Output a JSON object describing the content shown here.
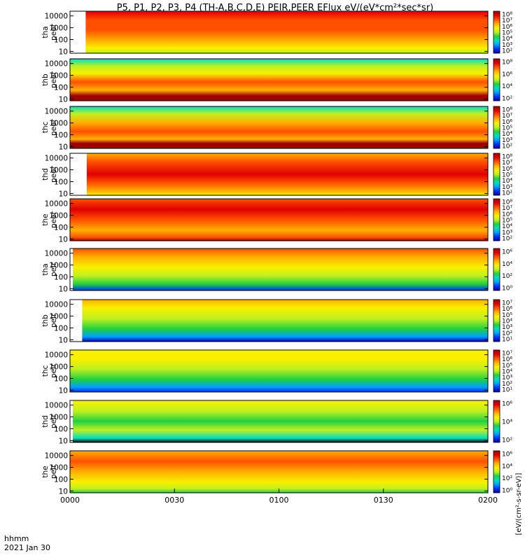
{
  "title": "P5, P1, P2, P3, P4 (TH-A,B,C,D,E) PEIR,PEER EFlux eV/(eV*cm²*sec*sr)",
  "colors": {
    "spectrum": [
      "#1000a0",
      "#0030ff",
      "#00a0ff",
      "#00e0c0",
      "#20d040",
      "#c0f020",
      "#f8f000",
      "#ffb000",
      "#ff5000",
      "#e00000",
      "#a00000"
    ]
  },
  "chart_data": {
    "type": "heatmap",
    "xaxis": {
      "label_line1": "hhmm",
      "label_line2": "2021 Jan 30",
      "ticks": [
        "0000",
        "0030",
        "0100",
        "0130",
        "0200"
      ],
      "range": [
        "00:00",
        "02:00"
      ]
    },
    "yaxis": {
      "scale": "log",
      "ticks": [
        "10",
        "100",
        "1000",
        "10000"
      ],
      "range_eV": [
        7,
        25000
      ]
    },
    "colorbar_label": "[eV/(cm²-s-sr-eV)]",
    "panels": [
      {
        "id": "tha-peer",
        "probe": "tha",
        "product": "peer",
        "cb_ticks": [
          "10²",
          "10³",
          "10⁴",
          "10⁵",
          "10⁶",
          "10⁷",
          "10⁸"
        ],
        "data_start_min": 4.5,
        "bands": [
          [
            1,
            "#e00000"
          ],
          [
            0.78,
            "#ff5000"
          ],
          [
            0.55,
            "#ff5000"
          ],
          [
            0.3,
            "#ffb000"
          ],
          [
            0.12,
            "#f8f000"
          ],
          [
            0,
            "#c0f020"
          ]
        ]
      },
      {
        "id": "thb-peer",
        "probe": "thb",
        "product": "peer",
        "cb_ticks": [
          "10²",
          "10⁴",
          "10⁶",
          "10⁸"
        ],
        "data_start_min": 0,
        "bands": [
          [
            1,
            "#00e0c0"
          ],
          [
            0.82,
            "#c0f020"
          ],
          [
            0.65,
            "#f8f000"
          ],
          [
            0.45,
            "#ff5000"
          ],
          [
            0.25,
            "#ffb000"
          ],
          [
            0.12,
            "#a00000"
          ],
          [
            0,
            "#a00000"
          ]
        ]
      },
      {
        "id": "thc-peer",
        "probe": "thc",
        "product": "peer",
        "cb_ticks": [
          "10²",
          "10³",
          "10⁴",
          "10⁵",
          "10⁶",
          "10⁷",
          "10⁸"
        ],
        "data_start_min": 0,
        "bands": [
          [
            1,
            "#00e0c0"
          ],
          [
            0.82,
            "#c0f020"
          ],
          [
            0.62,
            "#ffb000"
          ],
          [
            0.4,
            "#ff5000"
          ],
          [
            0.22,
            "#ffb000"
          ],
          [
            0.12,
            "#a00000"
          ],
          [
            0,
            "#a00000"
          ]
        ]
      },
      {
        "id": "thd-peer",
        "probe": "thd",
        "product": "peer",
        "cb_ticks": [
          "10²",
          "10³",
          "10⁴",
          "10⁵",
          "10⁶",
          "10⁷",
          "10⁸"
        ],
        "data_start_min": 4.8,
        "bands": [
          [
            1,
            "#ffb000"
          ],
          [
            0.8,
            "#ff5000"
          ],
          [
            0.5,
            "#e00000"
          ],
          [
            0.3,
            "#ff5000"
          ],
          [
            0.1,
            "#ffb000"
          ],
          [
            0,
            "#f8f000"
          ]
        ]
      },
      {
        "id": "the-peer",
        "probe": "the",
        "product": "peer",
        "cb_ticks": [
          "10²",
          "10³",
          "10⁴",
          "10⁵",
          "10⁶",
          "10⁷",
          "10⁸"
        ],
        "data_start_min": 0,
        "bands": [
          [
            1,
            "#ff5000"
          ],
          [
            0.75,
            "#e00000"
          ],
          [
            0.5,
            "#ff5000"
          ],
          [
            0.25,
            "#ffb000"
          ],
          [
            0.08,
            "#ff5000"
          ],
          [
            0,
            "#a00000"
          ]
        ]
      },
      {
        "id": "tha-peir",
        "probe": "tha",
        "product": "peir",
        "cb_ticks": [
          "10⁰",
          "10²",
          "10⁴",
          "10⁶"
        ],
        "data_start_min": 0.8,
        "bands": [
          [
            1,
            "#ff5000"
          ],
          [
            0.8,
            "#ffb000"
          ],
          [
            0.55,
            "#f8f000"
          ],
          [
            0.35,
            "#c0f020"
          ],
          [
            0.15,
            "#20d040"
          ],
          [
            0,
            "#0030ff"
          ]
        ]
      },
      {
        "id": "thb-peir",
        "probe": "thb",
        "product": "peir",
        "cb_ticks": [
          "10¹",
          "10²",
          "10³",
          "10⁴",
          "10⁵",
          "10⁶",
          "10⁷"
        ],
        "data_start_min": 3.5,
        "bands": [
          [
            1,
            "#ffb000"
          ],
          [
            0.8,
            "#f8f000"
          ],
          [
            0.55,
            "#c0f020"
          ],
          [
            0.3,
            "#20d040"
          ],
          [
            0.12,
            "#00a0ff"
          ],
          [
            0,
            "#1000a0"
          ]
        ]
      },
      {
        "id": "thc-peir",
        "probe": "thc",
        "product": "peir",
        "cb_ticks": [
          "10¹",
          "10²",
          "10³",
          "10⁴",
          "10⁵",
          "10⁶",
          "10⁷"
        ],
        "data_start_min": 0,
        "bands": [
          [
            1,
            "#f8f000"
          ],
          [
            0.78,
            "#f8f000"
          ],
          [
            0.55,
            "#c0f020"
          ],
          [
            0.3,
            "#20d040"
          ],
          [
            0.12,
            "#00a0ff"
          ],
          [
            0,
            "#0030ff"
          ]
        ]
      },
      {
        "id": "thd-peir",
        "probe": "thd",
        "product": "peir",
        "cb_ticks": [
          "10²",
          "10⁴",
          "10⁶"
        ],
        "data_start_min": 0.8,
        "bands": [
          [
            1,
            "#f8f000"
          ],
          [
            0.75,
            "#c0f020"
          ],
          [
            0.5,
            "#20d040"
          ],
          [
            0.3,
            "#c0f020"
          ],
          [
            0.1,
            "#00e0c0"
          ],
          [
            0,
            "#000000"
          ]
        ]
      },
      {
        "id": "the-peir",
        "probe": "the",
        "product": "peir",
        "cb_ticks": [
          "10⁰",
          "10²",
          "10⁴",
          "10⁶"
        ],
        "data_start_min": 0,
        "bands": [
          [
            1,
            "#ffb000"
          ],
          [
            0.75,
            "#ff5000"
          ],
          [
            0.5,
            "#ffb000"
          ],
          [
            0.25,
            "#f8f000"
          ],
          [
            0.1,
            "#c0f020"
          ],
          [
            0,
            "#20d040"
          ]
        ]
      }
    ]
  }
}
